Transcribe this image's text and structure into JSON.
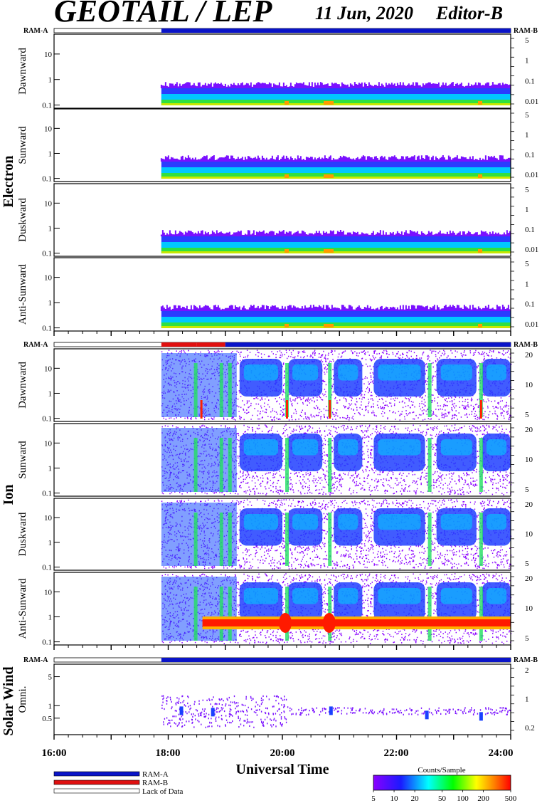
{
  "header": {
    "title": "GEOTAIL / LEP",
    "date": "11 Jun, 2020",
    "editor": "Editor-B"
  },
  "colors": {
    "ram_a": "#0a14c8",
    "ram_b": "#e01010",
    "lack_of_data": "#ffffff",
    "axis": "#000000"
  },
  "chart_data": {
    "type": "heatmap",
    "description_units": {
      "x": "UT hours",
      "y": "energy (keV)",
      "color": "Counts/Sample"
    },
    "x_axis": {
      "label": "Universal Time",
      "range": [
        16,
        24
      ],
      "ticks": [
        16,
        18,
        20,
        22,
        24
      ],
      "tick_labels": [
        "16:00",
        "18:00",
        "20:00",
        "22:00",
        "24:00"
      ]
    },
    "data_start_ut": 17.88,
    "groups": [
      {
        "name": "Electron",
        "mode_bar": {
          "left_label": "RAM-A",
          "right_label": "RAM-B",
          "segments": [
            [
              16,
              17.88,
              "lack"
            ],
            [
              17.88,
              24,
              "ram_a"
            ]
          ]
        },
        "panels": [
          {
            "label": "Dawnward",
            "y_ticks": [
              0.1,
              1,
              10
            ],
            "y_tick_labels": [
              "0.1",
              "1",
              "10"
            ],
            "right_ticks": [
              "5",
              "1",
              "0.1",
              "0.01"
            ]
          },
          {
            "label": "Sunward",
            "y_ticks": [
              0.1,
              1,
              10
            ],
            "y_tick_labels": [
              "0.1",
              "1",
              "10"
            ],
            "right_ticks": [
              "5",
              "1",
              "0.1",
              "0.01"
            ]
          },
          {
            "label": "Duskward",
            "y_ticks": [
              0.1,
              1,
              10
            ],
            "y_tick_labels": [
              "0.1",
              "1",
              "10"
            ],
            "right_ticks": [
              "5",
              "1",
              "0.1",
              "0.01"
            ]
          },
          {
            "label": "Anti-Sunward",
            "y_ticks": [
              0.1,
              1,
              10
            ],
            "y_tick_labels": [
              "0.1",
              "1",
              "10"
            ],
            "right_ticks": [
              "5",
              "1",
              "0.1",
              "0.01"
            ]
          }
        ]
      },
      {
        "name": "Ion",
        "mode_bar": {
          "left_label": "RAM-A",
          "right_label": "RAM-B",
          "segments": [
            [
              16,
              17.88,
              "lack"
            ],
            [
              17.88,
              18.5,
              "ram_b"
            ],
            [
              18.5,
              19.0,
              "ram_b"
            ],
            [
              19.0,
              24,
              "ram_a"
            ]
          ]
        },
        "panels": [
          {
            "label": "Dawnward",
            "y_ticks": [
              0.1,
              1,
              10
            ],
            "y_tick_labels": [
              "0.1",
              "1",
              "10"
            ],
            "right_ticks": [
              "20",
              "10",
              "5"
            ]
          },
          {
            "label": "Sunward",
            "y_ticks": [
              0.1,
              1,
              10
            ],
            "y_tick_labels": [
              "0.1",
              "1",
              "10"
            ],
            "right_ticks": [
              "20",
              "10",
              "5"
            ]
          },
          {
            "label": "Duskward",
            "y_ticks": [
              0.1,
              1,
              10
            ],
            "y_tick_labels": [
              "0.1",
              "1",
              "10"
            ],
            "right_ticks": [
              "20",
              "10",
              "5"
            ]
          },
          {
            "label": "Anti-Sunward",
            "y_ticks": [
              0.1,
              1,
              10
            ],
            "y_tick_labels": [
              "0.1",
              "1",
              "10"
            ],
            "right_ticks": [
              "20",
              "10",
              "5"
            ]
          }
        ]
      },
      {
        "name": "Solar Wind",
        "mode_bar": {
          "left_label": "RAM-A",
          "right_label": "RAM-B",
          "segments": [
            [
              16,
              17.88,
              "lack"
            ],
            [
              17.88,
              24,
              "ram_a"
            ]
          ]
        },
        "panels": [
          {
            "label": "Omni.",
            "y_ticks": [
              0.5,
              1,
              5
            ],
            "y_tick_labels": [
              "0.5",
              "1",
              "5"
            ],
            "right_ticks": [
              "2",
              "1",
              "0.2"
            ]
          }
        ]
      }
    ],
    "colorbar": {
      "title": "Counts/Sample",
      "scale": "log",
      "tick_values": [
        5,
        10,
        20,
        50,
        100,
        200,
        500
      ],
      "tick_labels": [
        "5",
        "10",
        "20",
        "50",
        "100",
        "200",
        "500"
      ],
      "colors": [
        "#8a00ff",
        "#1a1aff",
        "#00ffff",
        "#00ff00",
        "#ffff00",
        "#ff8000",
        "#ff0000"
      ]
    },
    "legend": [
      {
        "label": "RAM-A",
        "color": "#0a14c8"
      },
      {
        "label": "RAM-B",
        "color": "#e01010"
      },
      {
        "label": "Lack of Data",
        "color": "#ffffff"
      }
    ]
  }
}
